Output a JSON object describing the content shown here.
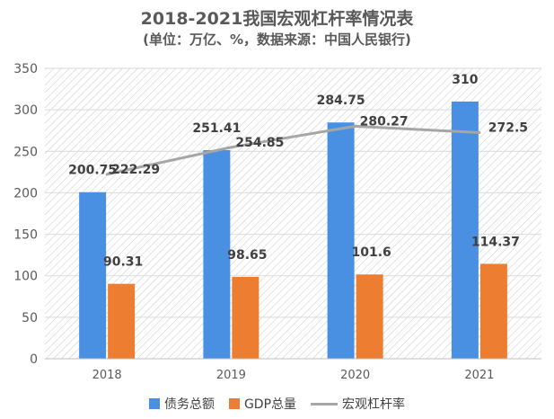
{
  "chart_data": {
    "type": "bar",
    "title": "2018-2021我国宏观杠杆率情况表",
    "subtitle": "(单位：万亿、%，数据来源：中国人民银行)",
    "categories": [
      "2018",
      "2019",
      "2020",
      "2021"
    ],
    "series": [
      {
        "name": "债务总额",
        "type": "bar",
        "color": "#4a90e2",
        "values": [
          200.75,
          251.41,
          284.75,
          310
        ],
        "labels": [
          "200.75",
          "251.41",
          "284.75",
          "310"
        ]
      },
      {
        "name": "GDP总量",
        "type": "bar",
        "color": "#ed7d31",
        "values": [
          90.31,
          98.65,
          101.6,
          114.37
        ],
        "labels": [
          "90.31",
          "98.65",
          "101.6",
          "114.37"
        ]
      },
      {
        "name": "宏观杠杆率",
        "type": "line",
        "color": "#a6a6a6",
        "values": [
          222.29,
          254.85,
          280.27,
          272.5
        ],
        "labels": [
          "222.29",
          "254.85",
          "280.27",
          "272.5"
        ]
      }
    ],
    "ylim": [
      0,
      350
    ],
    "yticks": [
      "0",
      "50",
      "100",
      "150",
      "200",
      "250",
      "300",
      "350"
    ],
    "grid": true,
    "legend": "bottom"
  }
}
